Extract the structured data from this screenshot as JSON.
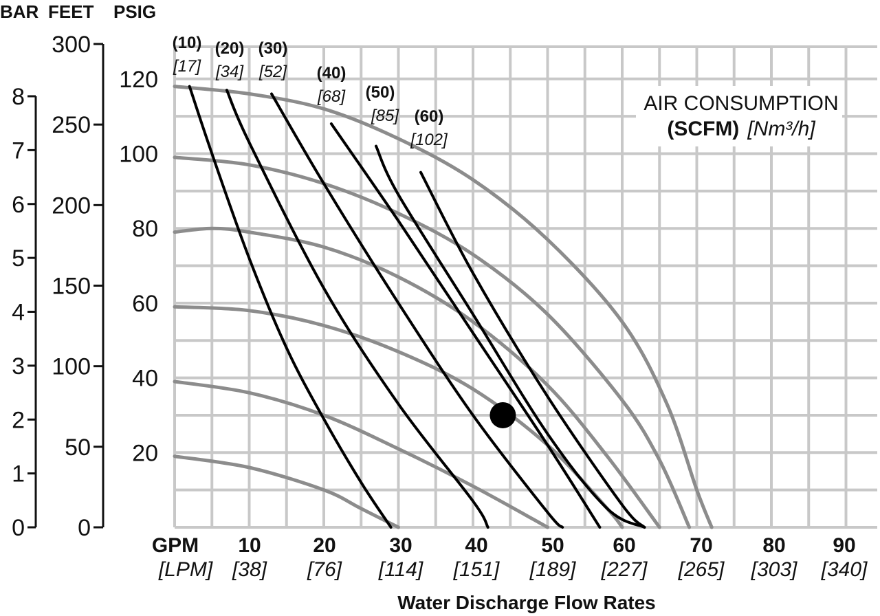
{
  "chart_data": {
    "type": "line",
    "axis_headers": {
      "bar": "BAR",
      "feet": "FEET",
      "psig": "PSIG"
    },
    "psig_ticks": [
      "120",
      "100",
      "80",
      "60",
      "40",
      "20"
    ],
    "psig_values": [
      120,
      100,
      80,
      60,
      40,
      20
    ],
    "feet_ticks": [
      "300",
      "250",
      "200",
      "150",
      "100",
      "50",
      "0"
    ],
    "feet_values": [
      300,
      250,
      200,
      150,
      100,
      50,
      0
    ],
    "bar_ticks": [
      "8",
      "7",
      "6",
      "5",
      "4",
      "3",
      "2",
      "1",
      "0"
    ],
    "bar_values": [
      8,
      7,
      6,
      5,
      4,
      3,
      2,
      1,
      0
    ],
    "x_unit_label": "GPM",
    "x_unit_label_metric": "[LPM]",
    "x_ticks": [
      {
        "gpm": "10",
        "lpm": "[38]",
        "v": 10
      },
      {
        "gpm": "20",
        "lpm": "[76]",
        "v": 20
      },
      {
        "gpm": "30",
        "lpm": "[114]",
        "v": 30
      },
      {
        "gpm": "40",
        "lpm": "[151]",
        "v": 40
      },
      {
        "gpm": "50",
        "lpm": "[189]",
        "v": 50
      },
      {
        "gpm": "60",
        "lpm": "[227]",
        "v": 60
      },
      {
        "gpm": "70",
        "lpm": "[265]",
        "v": 70
      },
      {
        "gpm": "80",
        "lpm": "[303]",
        "v": 80
      },
      {
        "gpm": "90",
        "lpm": "[340]",
        "v": 90
      }
    ],
    "xlabel": "Water Discharge Flow Rates",
    "xlim": [
      0,
      90
    ],
    "ylim": [
      0,
      130
    ],
    "grid": true,
    "legend_title": "AIR CONSUMPTION",
    "legend_unit": "(SCFM)",
    "legend_unit_metric": "[Nm³/h]",
    "legend_placement": "top-right",
    "pressure_curves": [
      {
        "inlet_psig": 120,
        "color": "#8c8c8c",
        "points": [
          [
            0,
            118
          ],
          [
            10,
            116
          ],
          [
            20,
            112
          ],
          [
            30,
            104
          ],
          [
            40,
            93
          ],
          [
            50,
            77
          ],
          [
            60,
            55
          ],
          [
            66,
            33
          ],
          [
            70,
            10
          ],
          [
            72,
            0
          ]
        ]
      },
      {
        "inlet_psig": 100,
        "color": "#8c8c8c",
        "points": [
          [
            0,
            99
          ],
          [
            10,
            97
          ],
          [
            20,
            92
          ],
          [
            30,
            84
          ],
          [
            40,
            73
          ],
          [
            50,
            57
          ],
          [
            60,
            34
          ],
          [
            65,
            18
          ],
          [
            69,
            0
          ]
        ]
      },
      {
        "inlet_psig": 80,
        "color": "#8c8c8c",
        "points": [
          [
            0,
            79
          ],
          [
            5,
            80
          ],
          [
            10,
            79
          ],
          [
            20,
            75
          ],
          [
            30,
            67
          ],
          [
            40,
            55
          ],
          [
            50,
            38
          ],
          [
            58,
            19
          ],
          [
            65,
            0
          ]
        ]
      },
      {
        "inlet_psig": 60,
        "color": "#8c8c8c",
        "points": [
          [
            0,
            59
          ],
          [
            10,
            58
          ],
          [
            20,
            54
          ],
          [
            30,
            47
          ],
          [
            40,
            37
          ],
          [
            50,
            22
          ],
          [
            58,
            5
          ],
          [
            60,
            0
          ]
        ]
      },
      {
        "inlet_psig": 40,
        "color": "#8c8c8c",
        "points": [
          [
            0,
            39
          ],
          [
            10,
            36
          ],
          [
            20,
            30
          ],
          [
            30,
            21
          ],
          [
            40,
            11
          ],
          [
            50,
            0
          ]
        ]
      },
      {
        "inlet_psig": 20,
        "color": "#8c8c8c",
        "points": [
          [
            0,
            19
          ],
          [
            10,
            16
          ],
          [
            20,
            10
          ],
          [
            25,
            5
          ],
          [
            30,
            0
          ]
        ]
      }
    ],
    "air_consumption_curves": [
      {
        "scfm": "(10)",
        "nm3h": "[17]",
        "points": [
          [
            2,
            118
          ],
          [
            5,
            100
          ],
          [
            10,
            72
          ],
          [
            15,
            48
          ],
          [
            20,
            29
          ],
          [
            25,
            12
          ],
          [
            29,
            0
          ]
        ]
      },
      {
        "scfm": "(20)",
        "nm3h": "[34]",
        "points": [
          [
            7,
            117
          ],
          [
            10,
            103
          ],
          [
            20,
            64
          ],
          [
            30,
            33
          ],
          [
            40,
            7
          ],
          [
            42,
            0
          ]
        ]
      },
      {
        "scfm": "(30)",
        "nm3h": "[52]",
        "points": [
          [
            13,
            116
          ],
          [
            20,
            92
          ],
          [
            30,
            60
          ],
          [
            40,
            30
          ],
          [
            50,
            4
          ],
          [
            52,
            0
          ]
        ]
      },
      {
        "scfm": "(40)",
        "nm3h": "[68]",
        "points": [
          [
            21,
            108
          ],
          [
            30,
            82
          ],
          [
            40,
            52
          ],
          [
            50,
            22
          ],
          [
            57,
            0
          ]
        ]
      },
      {
        "scfm": "(50)",
        "nm3h": "[85]",
        "points": [
          [
            27,
            102
          ],
          [
            30,
            89
          ],
          [
            40,
            57
          ],
          [
            50,
            25
          ],
          [
            58,
            5
          ],
          [
            63,
            0
          ]
        ]
      },
      {
        "scfm": "(60)",
        "nm3h": "[102]",
        "points": [
          [
            33,
            95
          ],
          [
            40,
            68
          ],
          [
            50,
            35
          ],
          [
            60,
            6
          ],
          [
            63,
            0
          ]
        ]
      }
    ],
    "marked_point": {
      "gpm": 44,
      "psig": 30
    }
  }
}
